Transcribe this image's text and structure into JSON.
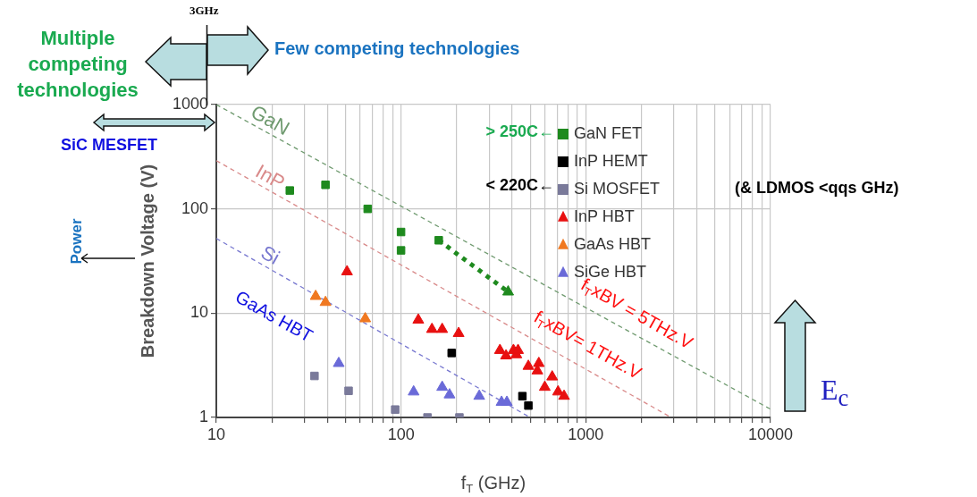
{
  "chart_data": {
    "type": "scatter",
    "xlabel": "f$_{T}$ (GHz)",
    "ylabel": "Breakdown Voltage (V)",
    "log": "xy",
    "xlim": [
      10,
      10000
    ],
    "ylim": [
      1,
      1000
    ],
    "xticks": [
      10,
      {
        "value": 20,
        "label": null
      },
      {
        "value": 30,
        "label": null
      },
      {
        "value": 40,
        "label": null
      },
      {
        "value": 50,
        "label": null
      },
      {
        "value": 60,
        "label": null
      },
      {
        "value": 70,
        "label": null
      },
      {
        "value": 80,
        "label": null
      },
      {
        "value": 90,
        "label": null
      },
      100,
      {
        "value": 200,
        "label": null
      },
      {
        "value": 300,
        "label": null
      },
      {
        "value": 400,
        "label": null
      },
      {
        "value": 500,
        "label": null
      },
      {
        "value": 600,
        "label": null
      },
      {
        "value": 700,
        "label": null
      },
      {
        "value": 800,
        "label": null
      },
      {
        "value": 900,
        "label": null
      },
      1000,
      {
        "value": 2000,
        "label": null
      },
      {
        "value": 3000,
        "label": null
      },
      {
        "value": 4000,
        "label": null
      },
      {
        "value": 5000,
        "label": null
      },
      {
        "value": 6000,
        "label": null
      },
      {
        "value": 7000,
        "label": null
      },
      {
        "value": 8000,
        "label": null
      },
      {
        "value": 9000,
        "label": null
      },
      10000
    ],
    "yticks": [
      1,
      10,
      100,
      1000
    ],
    "grid": true,
    "legend": "top right",
    "annotations": [
      "3GHz",
      "Multiple competing technologies",
      "Few competing technologies",
      "SiC MESFET",
      "Power",
      "> 250C←",
      "< 220C←",
      "(& LDMOS <qqs GHz)",
      "E$_{c}$",
      "f$_{T}$xBV = 5THz.V",
      "f$_{T}$xBV= 1THz.V",
      "GaAs HBT"
    ],
    "series": [
      {
        "name": "GaN",
        "type": "line",
        "line_style": "dashed",
        "marker": "none",
        "color": "#6f9a6f",
        "x": [
          10,
          10000
        ],
        "values": [
          1000,
          1.2
        ]
      },
      {
        "name": "InP",
        "type": "line",
        "line_style": "dashed",
        "marker": "none",
        "color": "#d98a8a",
        "x": [
          10,
          2900
        ],
        "values": [
          290,
          1
        ]
      },
      {
        "name": "Si",
        "type": "line",
        "line_style": "dashed",
        "marker": "none",
        "color": "#7878d0",
        "x": [
          10,
          500
        ],
        "values": [
          52,
          1
        ]
      },
      {
        "type": "line",
        "line_style": "dotted",
        "marker": "none",
        "color": "#1e8a1e",
        "x": [
          160,
          380
        ],
        "values": [
          50,
          16
        ]
      },
      {
        "name": "GaN FET",
        "marker": "square",
        "color": "#1e8a1e",
        "x": [
          25,
          39,
          66,
          100,
          100,
          160
        ],
        "values": [
          150,
          170,
          100,
          60,
          40,
          50
        ]
      },
      {
        "marker": "triangle",
        "color": "#1e8a1e",
        "x": [
          380
        ],
        "values": [
          16
        ]
      },
      {
        "name": "InP HEMT",
        "marker": "square",
        "color": "#000000",
        "x": [
          188,
          454,
          489
        ],
        "values": [
          4.15,
          1.6,
          1.3
        ]
      },
      {
        "name": "Si MOSFET",
        "marker": "square",
        "color": "#7a7a9a",
        "x": [
          34,
          52,
          93,
          139,
          207
        ],
        "values": [
          2.5,
          1.8,
          1.19,
          1,
          1
        ]
      },
      {
        "name": "InP HBT",
        "marker": "triangle",
        "color": "#e81010",
        "x": [
          51,
          124,
          147,
          167,
          205,
          343,
          370,
          406,
          421,
          430,
          489,
          557,
          547,
          658,
          600,
          708,
          763
        ],
        "values": [
          25,
          8.6,
          7,
          7,
          6.4,
          4.4,
          3.9,
          4.4,
          4,
          4.4,
          3.1,
          3.3,
          2.8,
          2.45,
          1.95,
          1.76,
          1.6
        ]
      },
      {
        "name": "GaAs HBT",
        "marker": "triangle",
        "color": "#f07820",
        "x": [
          34.5,
          39,
          64
        ],
        "values": [
          14.5,
          12.7,
          8.85
        ]
      },
      {
        "name": "SiGe HBT",
        "marker": "triangle",
        "color": "#6a6ad8",
        "x": [
          46,
          117,
          167,
          183,
          265,
          350,
          374
        ],
        "values": [
          3.3,
          1.76,
          1.95,
          1.65,
          1.6,
          1.4,
          1.4
        ]
      }
    ]
  }
}
